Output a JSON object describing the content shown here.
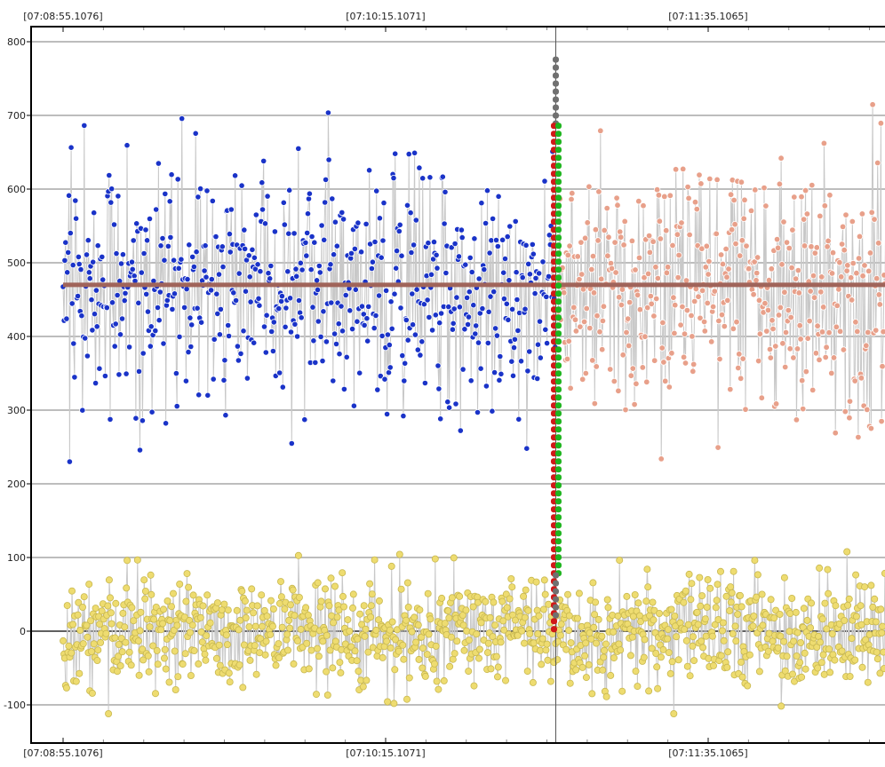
{
  "chart_data": {
    "type": "scatter",
    "title": "",
    "xlabel": "",
    "ylabel": "",
    "ylim": [
      -150,
      800
    ],
    "yticks": [
      -100,
      0,
      100,
      200,
      300,
      400,
      500,
      600,
      700,
      800
    ],
    "ytick_labels": [
      "-100",
      "0",
      "100",
      "200",
      "300",
      "400",
      "500",
      "600",
      "700",
      "800"
    ],
    "xlim": [
      -3,
      1023
    ],
    "x_time_labels": [
      {
        "x": 0,
        "label": "[07:08:55.1076]"
      },
      {
        "x": 400,
        "label": "[07:10:15.1071]"
      },
      {
        "x": 800,
        "label": "[07:11:35.1065]"
      }
    ],
    "cursor_x": 611,
    "grid": true,
    "legend": "none",
    "mean_line": {
      "y": 470,
      "color": "#a0645a"
    },
    "colors": {
      "series_before": "#1a33c8",
      "series_after": "#e8a08a",
      "series_low": "#eedc70",
      "series_line": "#c8c8c8",
      "marker_bar": "#707070",
      "marker_red": "#d01818",
      "marker_green": "#1eb41e"
    },
    "series": [
      {
        "role": "upper-before",
        "x_range": [
          0,
          611
        ],
        "count": 610,
        "mean": 470,
        "sd": 80,
        "ymin": 230,
        "ymax": 777
      },
      {
        "role": "upper-after",
        "x_range": [
          611,
          1023
        ],
        "count": 410,
        "mean": 470,
        "sd": 80,
        "ymin": 230,
        "ymax": 779
      },
      {
        "role": "lower",
        "x_range": [
          0,
          1023
        ],
        "count": 1020,
        "mean": 0,
        "sd": 38,
        "ymin": -112,
        "ymax": 148
      }
    ]
  }
}
